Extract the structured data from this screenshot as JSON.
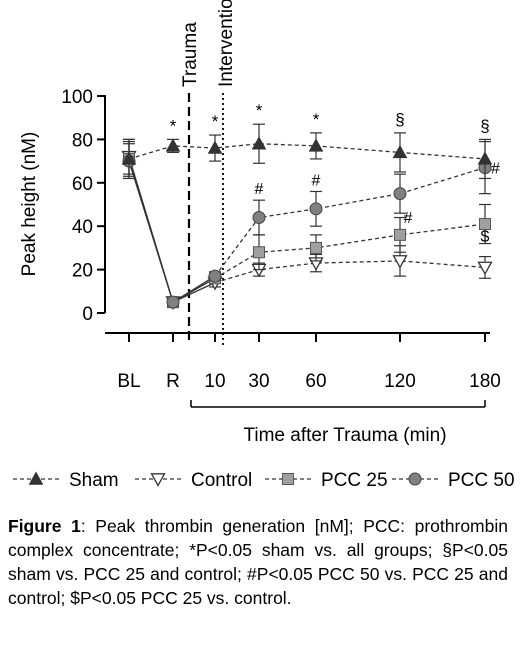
{
  "chart_data": {
    "type": "line",
    "ylabel": "Peak height (nM)",
    "xlabel": "Time after Trauma (min)",
    "ylim": [
      0,
      100
    ],
    "yticks": [
      0,
      20,
      40,
      60,
      80,
      100
    ],
    "categories": [
      "BL",
      "R",
      "10",
      "30",
      "60",
      "120",
      "180"
    ],
    "x": [
      -60,
      -30,
      10,
      30,
      60,
      120,
      180
    ],
    "annotations": {
      "trauma": "Trauma",
      "intervention": "Intervention"
    },
    "series": [
      {
        "name": "Sham",
        "marker": "triangle-up-filled",
        "color": "#333333",
        "values": [
          71,
          77,
          76,
          78,
          77,
          74,
          71
        ],
        "errors": [
          9,
          3,
          6,
          9,
          6,
          9,
          9
        ],
        "labels": [
          "",
          "*",
          "*",
          "*",
          "*",
          "§",
          "§"
        ]
      },
      {
        "name": "Control",
        "marker": "triangle-down-open",
        "color": "#333333",
        "values": [
          72,
          5,
          14,
          20,
          23,
          24,
          21
        ],
        "errors": [
          8,
          1,
          2,
          3,
          4,
          7,
          5
        ],
        "labels": [
          "",
          "",
          "",
          "",
          "",
          "",
          ""
        ]
      },
      {
        "name": "PCC 25",
        "marker": "square-filled",
        "color": "#a0a0a0",
        "values": [
          71,
          5,
          16,
          28,
          30,
          36,
          41
        ],
        "errors": [
          8,
          1,
          2,
          8,
          6,
          8,
          9
        ],
        "labels": [
          "",
          "",
          "",
          "",
          "",
          "#",
          "$"
        ]
      },
      {
        "name": "PCC 50",
        "marker": "circle-filled",
        "color": "#808080",
        "values": [
          70,
          5,
          17,
          44,
          48,
          55,
          67
        ],
        "errors": [
          8,
          1,
          2,
          8,
          8,
          9,
          12
        ],
        "labels": [
          "",
          "",
          "",
          "#",
          "#",
          "",
          "#"
        ]
      }
    ]
  },
  "caption": {
    "label": "Figure 1",
    "text": ": Peak thrombin generation [nM]; PCC: prothrombin complex concentrate; *P<0.05 sham vs. all groups; §P<0.05 sham vs. PCC 25 and control; #P<0.05 PCC 50 vs. PCC 25 and control; $P<0.05 PCC 25 vs. control."
  }
}
